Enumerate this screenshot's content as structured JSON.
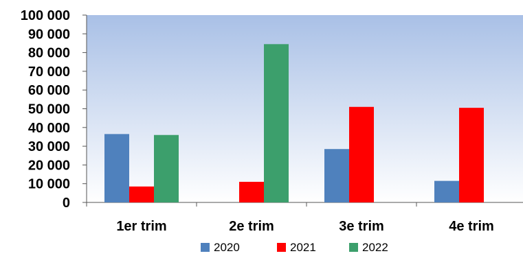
{
  "chart_data": {
    "type": "bar",
    "categories": [
      "1er trim",
      "2e trim",
      "3e trim",
      "4e trim"
    ],
    "series": [
      {
        "name": "2020",
        "color": "#4F81BD",
        "values": [
          36500,
          0,
          28500,
          11500
        ]
      },
      {
        "name": "2021",
        "color": "#FF0000",
        "values": [
          8500,
          11000,
          51000,
          50500
        ]
      },
      {
        "name": "2022",
        "color": "#3C9F6C",
        "values": [
          36000,
          84500,
          0,
          0
        ]
      }
    ],
    "y_ticks": [
      "0",
      "10 000",
      "20 000",
      "30 000",
      "40 000",
      "50 000",
      "60 000",
      "70 000",
      "80 000",
      "90 000",
      "100 000"
    ],
    "ylim": [
      0,
      100000
    ],
    "plot_background": {
      "top": "#A9C0E6",
      "bottom": "#FFFFFF"
    },
    "grid": false,
    "legend_position": "bottom"
  }
}
